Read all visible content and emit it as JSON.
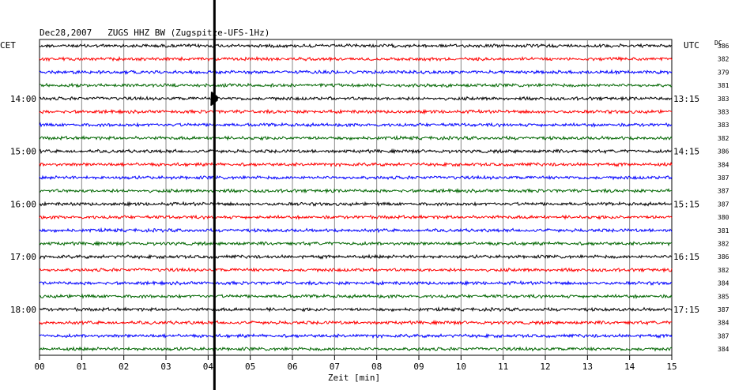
{
  "chart_data": {
    "type": "line",
    "title": "Dec28,2007   ZUGS HHZ BW (Zugspitze-UFS-1Hz)",
    "xlabel": "Zeit [min]",
    "x_tick_labels": [
      "00",
      "01",
      "02",
      "03",
      "04",
      "05",
      "06",
      "07",
      "08",
      "09",
      "10",
      "11",
      "12",
      "13",
      "14",
      "15"
    ],
    "xlim": [
      0,
      15
    ],
    "left_timezone": "CET",
    "right_timezone": "UTC",
    "dc_header": "DC",
    "left_hour_labels": [
      {
        "row": 4,
        "text": "14:00"
      },
      {
        "row": 8,
        "text": "15:00"
      },
      {
        "row": 12,
        "text": "16:00"
      },
      {
        "row": 16,
        "text": "17:00"
      },
      {
        "row": 20,
        "text": "18:00"
      }
    ],
    "right_hour_labels": [
      {
        "row": 4,
        "text": "13:15"
      },
      {
        "row": 8,
        "text": "14:15"
      },
      {
        "row": 12,
        "text": "15:15"
      },
      {
        "row": 16,
        "text": "16:15"
      },
      {
        "row": 20,
        "text": "17:15"
      }
    ],
    "trace_colors": [
      "#000000",
      "#ff0000",
      "#0000ff",
      "#006600"
    ],
    "dc_offsets": [
      "386",
      "382",
      "379",
      "381",
      "383",
      "383",
      "383",
      "382",
      "386",
      "384",
      "387",
      "387",
      "387",
      "380",
      "381",
      "382",
      "386",
      "382",
      "384",
      "385",
      "387",
      "384",
      "387",
      "384"
    ],
    "event": {
      "minute": 4.15,
      "rows": [
        0,
        4
      ],
      "strongest_row": 4,
      "saturated_beyond_plot": true
    }
  }
}
